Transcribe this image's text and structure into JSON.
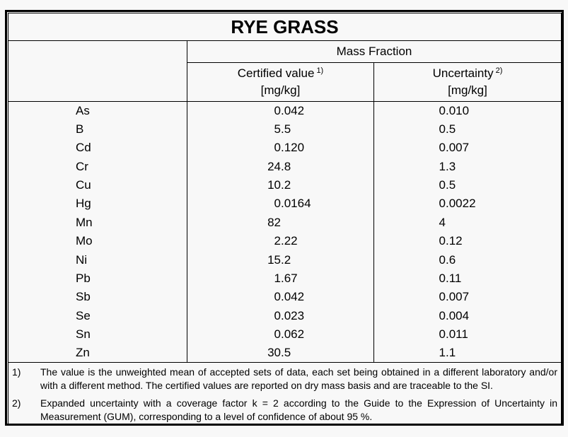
{
  "title": "RYE GRASS",
  "table": {
    "group_header": "Mass Fraction",
    "columns": [
      {
        "label": "Certified value",
        "sup": "1)",
        "unit": "[mg/kg]"
      },
      {
        "label": "Uncertainty",
        "sup": "2)",
        "unit": "[mg/kg]"
      }
    ],
    "rows": [
      {
        "element": "As",
        "certified": "0.042",
        "uncertainty": "0.010"
      },
      {
        "element": "B",
        "certified": "5.5",
        "uncertainty": "0.5"
      },
      {
        "element": "Cd",
        "certified": "0.120",
        "uncertainty": "0.007"
      },
      {
        "element": "Cr",
        "certified": "24.8",
        "uncertainty": "1.3"
      },
      {
        "element": "Cu",
        "certified": "10.2",
        "uncertainty": "0.5"
      },
      {
        "element": "Hg",
        "certified": "0.0164",
        "uncertainty": "0.0022"
      },
      {
        "element": "Mn",
        "certified": "82",
        "uncertainty": "4"
      },
      {
        "element": "Mo",
        "certified": "2.22",
        "uncertainty": "0.12"
      },
      {
        "element": "Ni",
        "certified": "15.2",
        "uncertainty": "0.6"
      },
      {
        "element": "Pb",
        "certified": "1.67",
        "uncertainty": "0.11"
      },
      {
        "element": "Sb",
        "certified": "0.042",
        "uncertainty": "0.007"
      },
      {
        "element": "Se",
        "certified": "0.023",
        "uncertainty": "0.004"
      },
      {
        "element": "Sn",
        "certified": "0.062",
        "uncertainty": "0.011"
      },
      {
        "element": "Zn",
        "certified": "30.5",
        "uncertainty": "1.1"
      }
    ]
  },
  "footnotes": [
    {
      "ref": "1)",
      "text": "The value is the unweighted mean of accepted sets of data, each set being obtained in a different laboratory and/or with a different method. The certified values are reported on dry mass basis and are traceable to the SI."
    },
    {
      "ref": "2)",
      "text": "Expanded uncertainty with a coverage factor k = 2 according to the Guide to the Expression of Uncertainty in Measurement (GUM), corresponding to a level of confidence of about 95 %."
    }
  ],
  "colors": {
    "background": "#f8f8f8",
    "border": "#000000",
    "text": "#000000"
  }
}
